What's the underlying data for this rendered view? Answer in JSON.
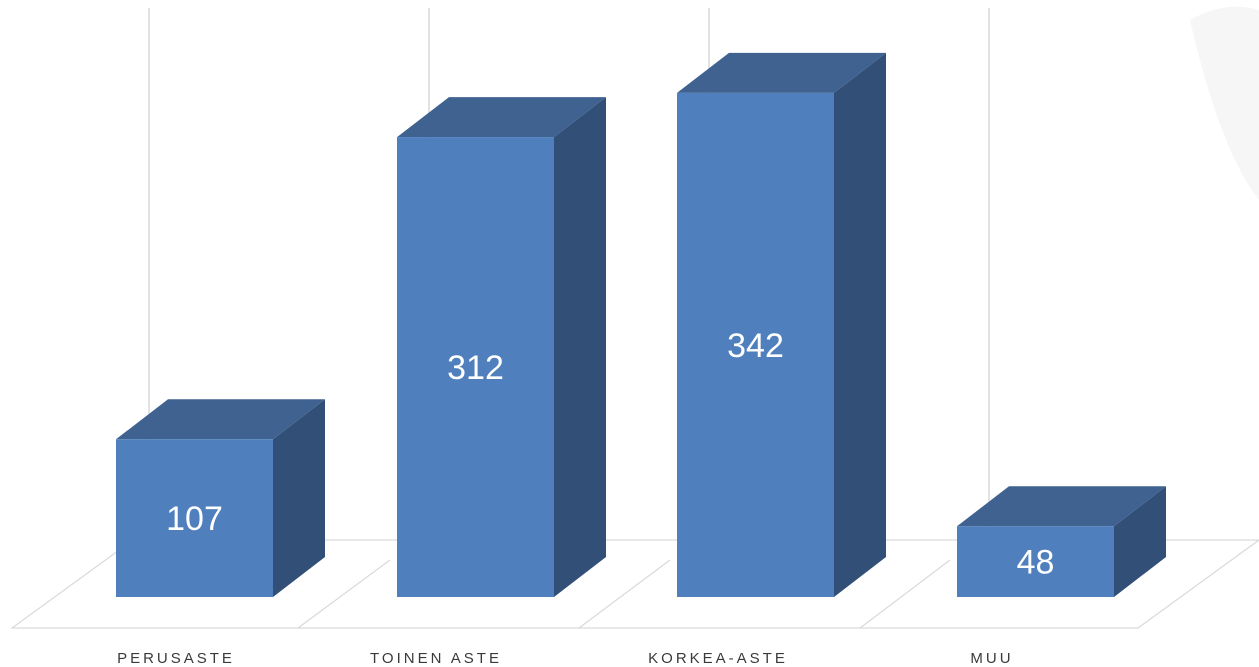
{
  "chart_data": {
    "type": "bar",
    "style": "3d-column",
    "categories": [
      "PERUSASTE",
      "TOINEN ASTE",
      "KORKEA-ASTE",
      "MUU"
    ],
    "values": [
      107,
      312,
      342,
      48
    ],
    "data_labels": [
      "107",
      "312",
      "342",
      "48"
    ],
    "title": "",
    "xlabel": "",
    "ylabel": "",
    "ylim": [
      0,
      400
    ],
    "grid": true,
    "legend": "none"
  },
  "colors": {
    "bar_front": "#4f7fbd",
    "bar_top": "#3f6290",
    "bar_side": "#324f78",
    "grid": "#d9d9d9",
    "floor": "#d9d9d9"
  }
}
